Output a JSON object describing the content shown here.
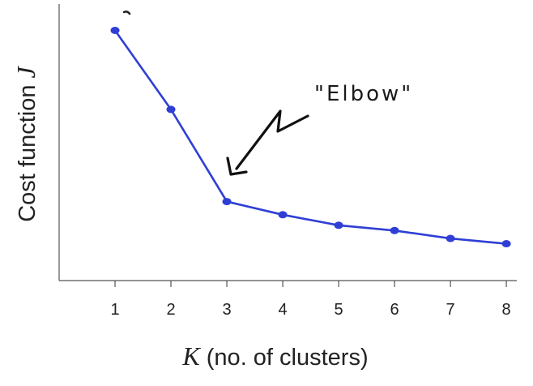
{
  "chart_data": {
    "type": "line",
    "title": "",
    "xlabel": {
      "symbol": "K",
      "text": " (no. of clusters)"
    },
    "ylabel": {
      "text": "Cost function ",
      "symbol": "J"
    },
    "x": [
      1,
      2,
      3,
      4,
      5,
      6,
      7,
      8
    ],
    "series": [
      {
        "values": [
          9.5,
          6.5,
          3.0,
          2.5,
          2.1,
          1.9,
          1.6,
          1.4
        ],
        "color": "#2f3fd6"
      }
    ],
    "xticks": [
      "1",
      "2",
      "3",
      "4",
      "5",
      "6",
      "7",
      "8"
    ],
    "xlim": [
      0,
      8.1
    ],
    "ylim": [
      0,
      10.5
    ],
    "grid": false,
    "annotations": [
      {
        "text": "\"Elbow\"",
        "points_to_x": 3
      }
    ]
  }
}
